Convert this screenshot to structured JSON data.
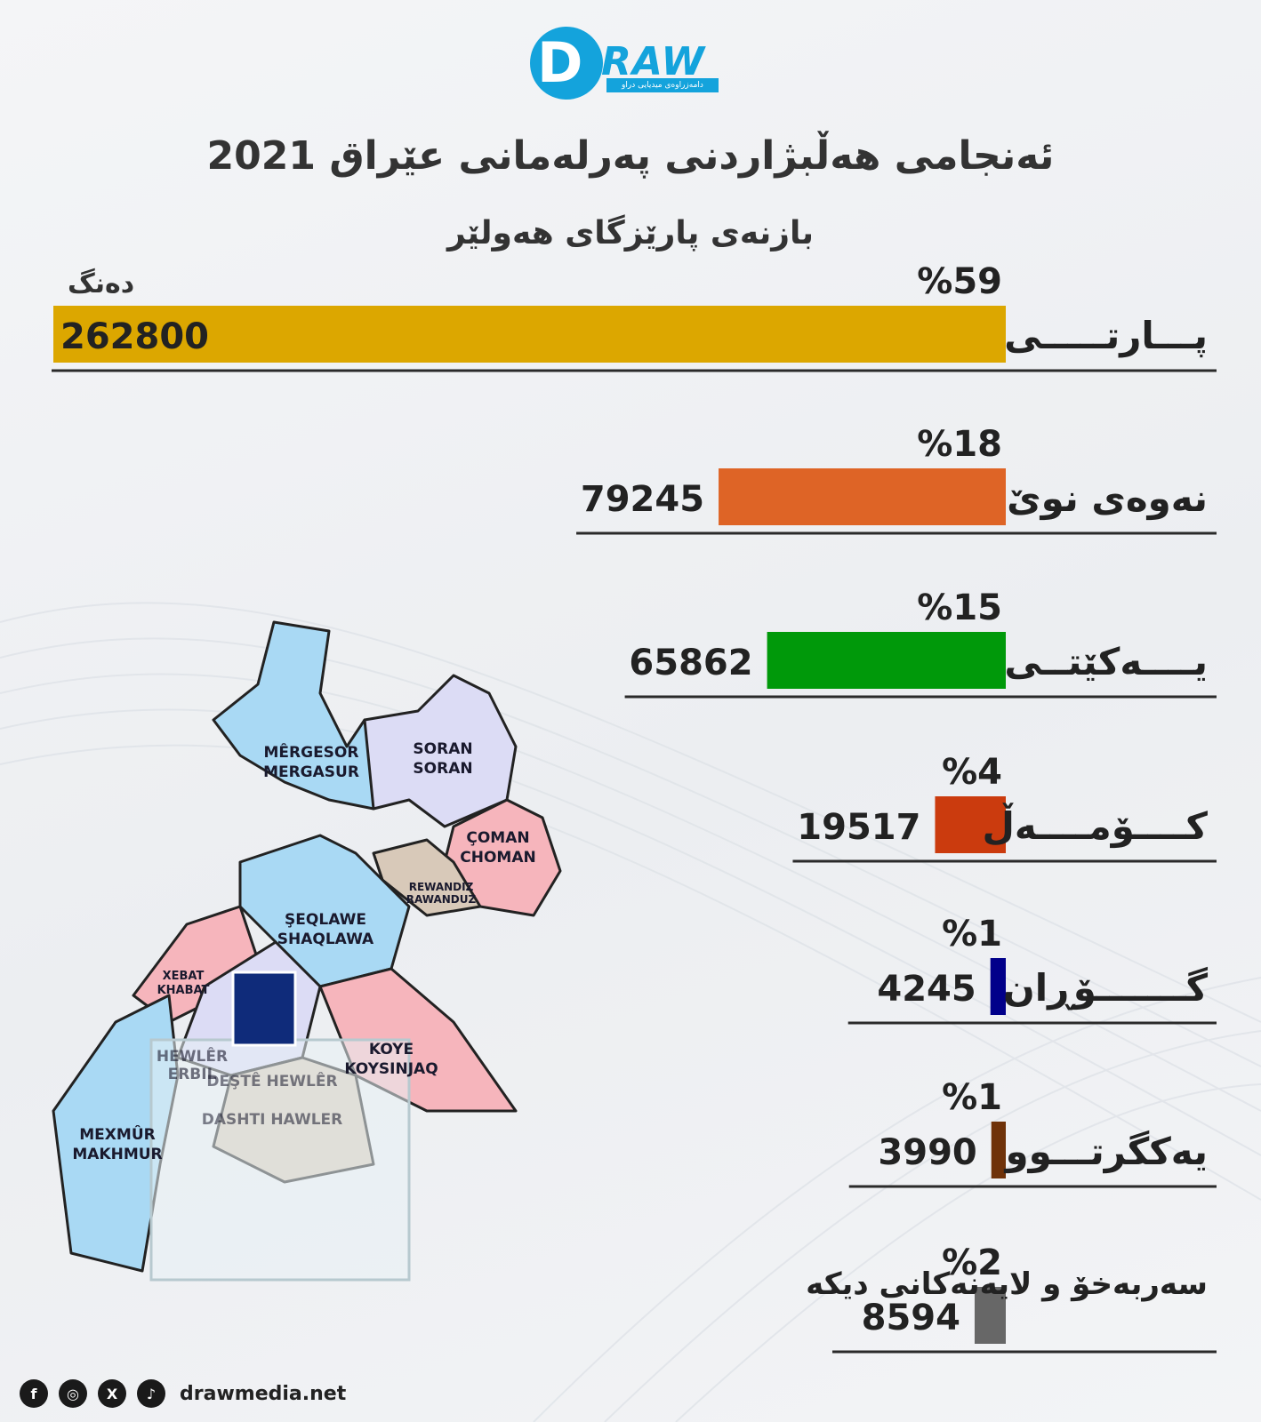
{
  "header": {
    "logo_word": "RAW",
    "logo_letter": "D",
    "logo_tagline": "دامەزراوەی میدیایی دراو",
    "title": "ئەنجامی هەڵبژاردنی پەرلەمانی عێراق 2021",
    "subtitle": "بازنەی پارێزگای هەولێر",
    "unit_label": "دەنگ"
  },
  "chart_data": {
    "type": "bar",
    "orientation": "horizontal",
    "categories": [
      "پـــارتـــــی",
      "نەوەی نوێ",
      "یــــەکێتــی",
      "کــــۆمــــەڵ",
      "گـــــــۆڕان",
      "یەکگرتـــوو",
      "سەربەخۆ و لایەنەکانی دیکە"
    ],
    "values": [
      262800,
      79245,
      65862,
      19517,
      4245,
      3990,
      8594
    ],
    "percent_labels": [
      "%59",
      "%18",
      "%15",
      "%4",
      "%1",
      "%1",
      "%2"
    ],
    "colors": [
      "#DCA700",
      "#DE6426",
      "#00990A",
      "#CB3B0E",
      "#01008A",
      "#6F3209",
      "#676767"
    ]
  },
  "map": {
    "regions": [
      {
        "line1": "MÊRGESOR",
        "line2": "MERGASUR",
        "color": "#A9D9F4"
      },
      {
        "line1": "SORAN",
        "line2": "SORAN",
        "color": "#DCDCF5"
      },
      {
        "line1": "ÇOMAN",
        "line2": "CHOMAN",
        "color": "#F6B5BC"
      },
      {
        "line1": "REWANDIZ",
        "line2": "RAWANDUZ",
        "color": "#D8C9B9"
      },
      {
        "line1": "ŞEQLAWE",
        "line2": "SHAQLAWA",
        "color": "#A9D9F4"
      },
      {
        "line1": "XEBAT",
        "line2": "KHABAT",
        "color": "#F6B5BC"
      },
      {
        "line1": "KOYE",
        "line2": "KOYSINJAQ",
        "color": "#F6B5BC"
      },
      {
        "line1": "MEXMÛR",
        "line2": "MAKHMUR",
        "color": "#A9D9F4"
      },
      {
        "line1": "HEWLÊR",
        "line2": "ERBIL",
        "color": "#DCDCF5"
      },
      {
        "line1": "DEŞTÊ HEWLÊR",
        "line2": "DASHTI HAWLER",
        "color": "#D8C9B9"
      }
    ]
  },
  "footer": {
    "icons": [
      "facebook-icon",
      "instagram-icon",
      "x-icon",
      "tiktok-icon"
    ],
    "facebook_glyph": "f",
    "instagram_glyph": "◎",
    "x_glyph": "X",
    "tiktok_glyph": "♪",
    "website": "drawmedia.net"
  }
}
